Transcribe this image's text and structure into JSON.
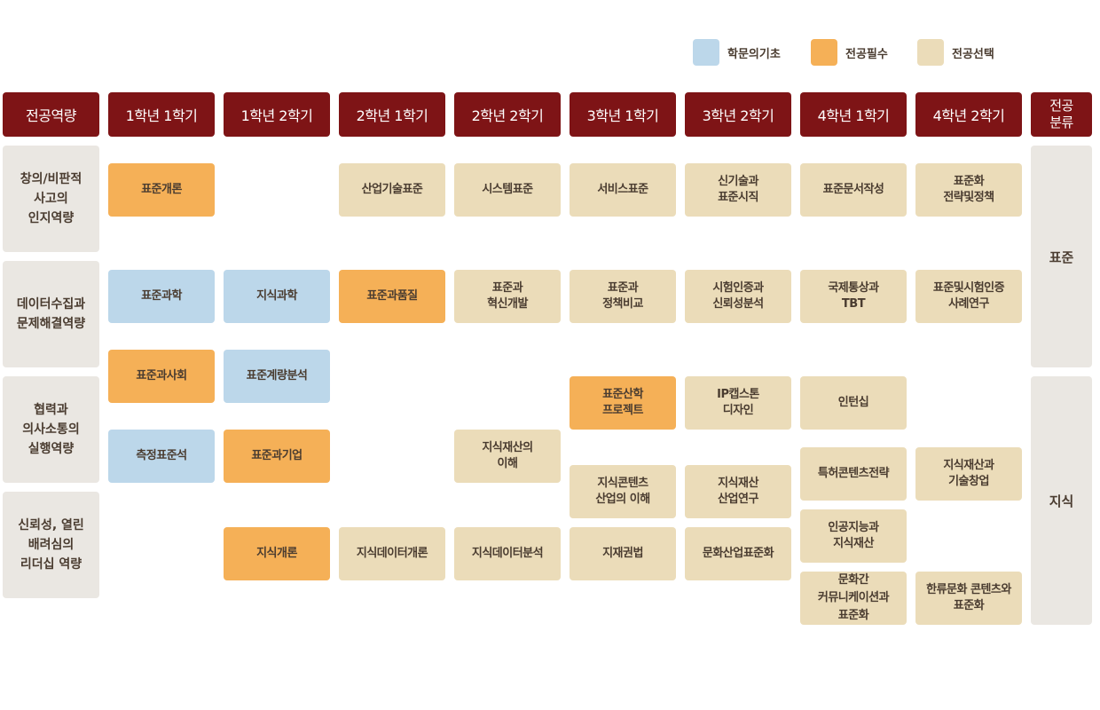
{
  "colors": {
    "header": "#7e1416",
    "basic": "#bcd7ea",
    "required": "#f5b057",
    "elective": "#ebdcb9",
    "side": "#eae7e2"
  },
  "legend": [
    {
      "type": "basic",
      "label": "학문의기초"
    },
    {
      "type": "required",
      "label": "전공필수"
    },
    {
      "type": "elective",
      "label": "전공선택"
    }
  ],
  "header": {
    "competency": "전공역량",
    "semesters": [
      "1학년 1학기",
      "1학년 2학기",
      "2학년 1학기",
      "2학년 2학기",
      "3학년 1학기",
      "3학년 2학기",
      "4학년 1학기",
      "4학년 2학기"
    ],
    "classification": "전공\n분류"
  },
  "competencies": [
    "창의/비판적\n사고의\n인지역량",
    "데이터수집과\n문제해결역량",
    "협력과\n의사소통의\n실행역량",
    "신뢰성, 열린\n배려심의\n리더십 역량"
  ],
  "classifications": [
    "표준",
    "지식"
  ],
  "courses": [
    {
      "name": "표준개론",
      "semester": 1,
      "type": "required"
    },
    {
      "name": "산업기술표준",
      "semester": 3,
      "type": "elective"
    },
    {
      "name": "시스템표준",
      "semester": 4,
      "type": "elective"
    },
    {
      "name": "서비스표준",
      "semester": 5,
      "type": "elective"
    },
    {
      "name": "신기술과\n표준시직",
      "semester": 6,
      "type": "elective"
    },
    {
      "name": "표준문서작성",
      "semester": 7,
      "type": "elective"
    },
    {
      "name": "표준화\n전략및정책",
      "semester": 8,
      "type": "elective"
    },
    {
      "name": "표준과학",
      "semester": 1,
      "type": "basic"
    },
    {
      "name": "지식과학",
      "semester": 2,
      "type": "basic"
    },
    {
      "name": "표준과품질",
      "semester": 3,
      "type": "required"
    },
    {
      "name": "표준과\n혁신개발",
      "semester": 4,
      "type": "elective"
    },
    {
      "name": "표준과\n정책비교",
      "semester": 5,
      "type": "elective"
    },
    {
      "name": "시험인증과\n신뢰성분석",
      "semester": 6,
      "type": "elective"
    },
    {
      "name": "국제통상과\nTBT",
      "semester": 7,
      "type": "elective"
    },
    {
      "name": "표준및시험인증\n사례연구",
      "semester": 8,
      "type": "elective"
    },
    {
      "name": "표준과사회",
      "semester": 1,
      "type": "required"
    },
    {
      "name": "표준계량분석",
      "semester": 2,
      "type": "basic"
    },
    {
      "name": "표준산학\n프로젝트",
      "semester": 5,
      "type": "required"
    },
    {
      "name": "IP캡스톤\n디자인",
      "semester": 6,
      "type": "elective"
    },
    {
      "name": "인턴십",
      "semester": 7,
      "type": "elective"
    },
    {
      "name": "측정표준석",
      "semester": 1,
      "type": "basic"
    },
    {
      "name": "표준과기업",
      "semester": 2,
      "type": "required"
    },
    {
      "name": "지식재산의\n이해",
      "semester": 4,
      "type": "elective"
    },
    {
      "name": "특허콘텐츠전략",
      "semester": 7,
      "type": "elective"
    },
    {
      "name": "지식재산과\n기술창업",
      "semester": 8,
      "type": "elective"
    },
    {
      "name": "지식콘텐츠\n산업의 이해",
      "semester": 5,
      "type": "elective"
    },
    {
      "name": "지식재산\n산업연구",
      "semester": 6,
      "type": "elective"
    },
    {
      "name": "인공지능과\n지식재산",
      "semester": 7,
      "type": "elective"
    },
    {
      "name": "지식개론",
      "semester": 2,
      "type": "required"
    },
    {
      "name": "지식데이터개론",
      "semester": 3,
      "type": "elective"
    },
    {
      "name": "지식데이터분석",
      "semester": 4,
      "type": "elective"
    },
    {
      "name": "지재권법",
      "semester": 5,
      "type": "elective"
    },
    {
      "name": "문화산업표준화",
      "semester": 6,
      "type": "elective"
    },
    {
      "name": "문화간\n커뮤니케이션과\n표준화",
      "semester": 7,
      "type": "elective"
    },
    {
      "name": "한류문화 콘텐츠와\n표준화",
      "semester": 8,
      "type": "elective"
    }
  ]
}
